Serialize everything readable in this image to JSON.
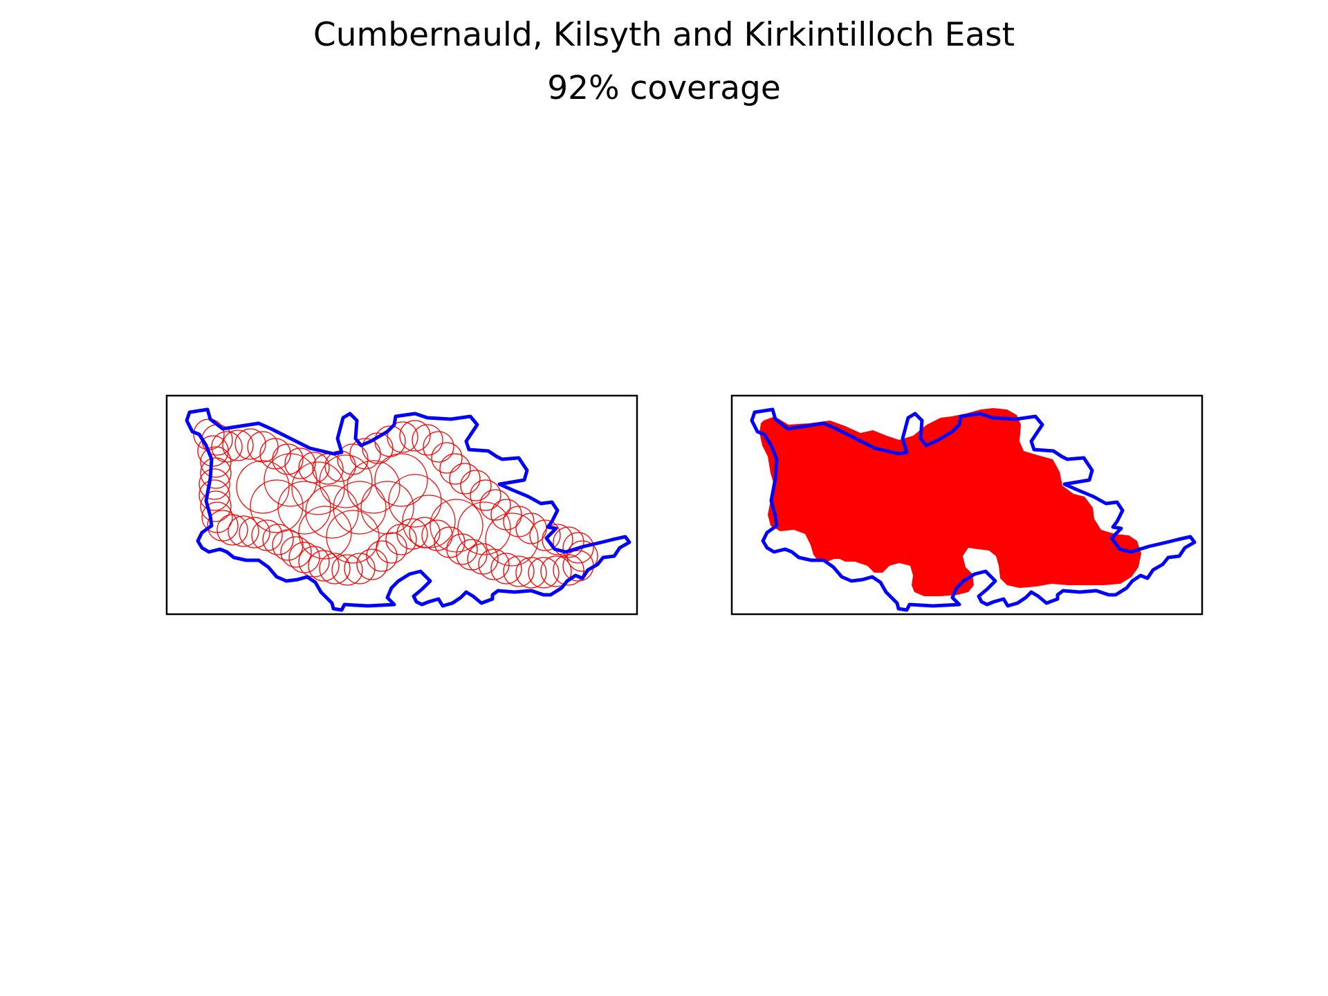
{
  "chart_data": {
    "type": "map",
    "title": "Cumbernauld, Kilsyth and Kirkintilloch East",
    "subtitle": "92% coverage",
    "coverage_percent": 92,
    "panels": [
      {
        "name": "circles",
        "description_visible": false
      },
      {
        "name": "filled",
        "description_visible": false
      }
    ],
    "colors": {
      "boundary": "#0000ff",
      "coverage": "#ff0000",
      "frame": "#000000",
      "background": "#ffffff"
    },
    "axes_ticks_visible": false,
    "grid": false,
    "legend": "none"
  }
}
